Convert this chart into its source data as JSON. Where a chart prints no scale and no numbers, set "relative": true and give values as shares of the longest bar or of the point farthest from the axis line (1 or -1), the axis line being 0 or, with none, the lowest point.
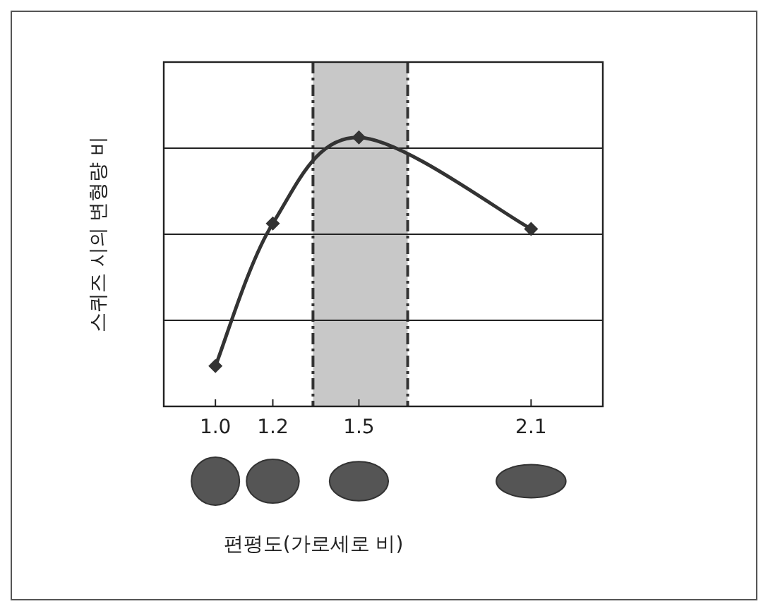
{
  "chart_data": {
    "type": "line",
    "xlabel": "편평도(가로세로 비)",
    "ylabel": "스퀴즈 시의 변형량 비",
    "relative": true,
    "x": [
      1.0,
      1.2,
      1.5,
      2.1
    ],
    "xlim": [
      0.82,
      2.35
    ],
    "xticks": [
      {
        "value": 1.0,
        "label": "1.0"
      },
      {
        "value": 1.2,
        "label": "1.2"
      },
      {
        "value": 1.5,
        "label": "1.5"
      },
      {
        "value": 2.1,
        "label": "2.1"
      }
    ],
    "series": [
      {
        "color": "#333333",
        "values": [
          0.15,
          0.68,
          1,
          0.66
        ]
      }
    ],
    "marker": "diamond",
    "grid": "y",
    "bands": [
      {
        "axis": "x",
        "from": 1.34,
        "to": 1.67,
        "color": "#c8c8c8"
      }
    ],
    "ref_lines": [
      {
        "axis": "x",
        "value": 1.34,
        "color": "#333333",
        "line_style": "dashed"
      },
      {
        "axis": "x",
        "value": 1.67,
        "color": "#333333",
        "line_style": "dashed"
      }
    ]
  }
}
